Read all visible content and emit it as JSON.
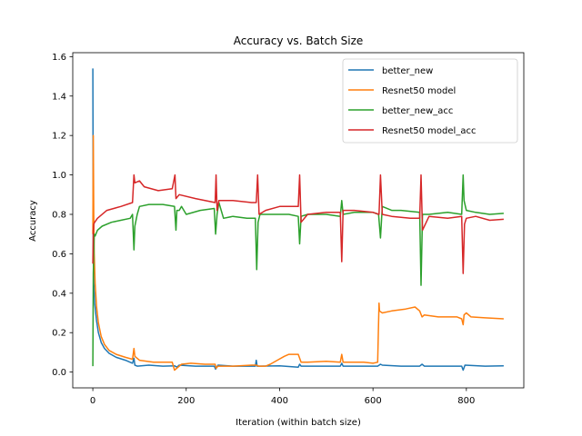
{
  "chart_data": {
    "type": "line",
    "title": "Accuracy vs. Batch Size",
    "xlabel": "Iteration (within batch size)",
    "ylabel": "Accuracy",
    "xlim": [
      -43,
      923
    ],
    "ylim": [
      -0.08,
      1.62
    ],
    "x_ticks": [
      0,
      200,
      400,
      600,
      800
    ],
    "y_ticks": [
      0.0,
      0.2,
      0.4,
      0.6,
      0.8,
      1.0,
      1.2,
      1.4,
      1.6
    ],
    "y_tick_labels": [
      "0.0",
      "0.2",
      "0.4",
      "0.6",
      "0.8",
      "1.0",
      "1.2",
      "1.4",
      "1.6"
    ],
    "grid": false,
    "legend_position": "top-right",
    "series": [
      {
        "name": "better_new",
        "color": "#1f77b4",
        "points": [
          [
            0,
            1.54
          ],
          [
            1,
            0.6
          ],
          [
            2,
            0.45
          ],
          [
            4,
            0.35
          ],
          [
            6,
            0.3
          ],
          [
            8,
            0.26
          ],
          [
            12,
            0.2
          ],
          [
            18,
            0.15
          ],
          [
            25,
            0.12
          ],
          [
            35,
            0.095
          ],
          [
            50,
            0.075
          ],
          [
            70,
            0.06
          ],
          [
            85,
            0.045
          ],
          [
            88,
            0.07
          ],
          [
            90,
            0.035
          ],
          [
            95,
            0.03
          ],
          [
            120,
            0.035
          ],
          [
            150,
            0.03
          ],
          [
            175,
            0.032
          ],
          [
            180,
            0.025
          ],
          [
            185,
            0.035
          ],
          [
            220,
            0.03
          ],
          [
            260,
            0.03
          ],
          [
            263,
            0.015
          ],
          [
            268,
            0.035
          ],
          [
            300,
            0.03
          ],
          [
            348,
            0.03
          ],
          [
            350,
            0.06
          ],
          [
            352,
            0.03
          ],
          [
            400,
            0.032
          ],
          [
            440,
            0.025
          ],
          [
            443,
            0.04
          ],
          [
            446,
            0.03
          ],
          [
            500,
            0.03
          ],
          [
            530,
            0.03
          ],
          [
            533,
            0.045
          ],
          [
            536,
            0.03
          ],
          [
            580,
            0.03
          ],
          [
            610,
            0.03
          ],
          [
            616,
            0.04
          ],
          [
            620,
            0.035
          ],
          [
            660,
            0.03
          ],
          [
            700,
            0.03
          ],
          [
            705,
            0.04
          ],
          [
            710,
            0.03
          ],
          [
            760,
            0.03
          ],
          [
            790,
            0.03
          ],
          [
            793,
            0.01
          ],
          [
            797,
            0.035
          ],
          [
            840,
            0.03
          ],
          [
            880,
            0.032
          ]
        ]
      },
      {
        "name": "Resnet50 model",
        "color": "#ff7f0e",
        "points": [
          [
            0,
            0.7
          ],
          [
            1,
            1.2
          ],
          [
            2,
            0.8
          ],
          [
            3,
            0.6
          ],
          [
            5,
            0.45
          ],
          [
            8,
            0.33
          ],
          [
            12,
            0.25
          ],
          [
            18,
            0.18
          ],
          [
            25,
            0.14
          ],
          [
            35,
            0.11
          ],
          [
            50,
            0.09
          ],
          [
            70,
            0.075
          ],
          [
            85,
            0.065
          ],
          [
            88,
            0.12
          ],
          [
            90,
            0.08
          ],
          [
            100,
            0.06
          ],
          [
            130,
            0.05
          ],
          [
            170,
            0.05
          ],
          [
            175,
            0.01
          ],
          [
            180,
            0.02
          ],
          [
            190,
            0.04
          ],
          [
            210,
            0.045
          ],
          [
            240,
            0.04
          ],
          [
            262,
            0.04
          ],
          [
            264,
            0.02
          ],
          [
            268,
            0.03
          ],
          [
            300,
            0.03
          ],
          [
            340,
            0.035
          ],
          [
            350,
            0.035
          ],
          [
            355,
            0.03
          ],
          [
            370,
            0.03
          ],
          [
            380,
            0.04
          ],
          [
            395,
            0.06
          ],
          [
            410,
            0.08
          ],
          [
            420,
            0.09
          ],
          [
            440,
            0.09
          ],
          [
            443,
            0.07
          ],
          [
            446,
            0.05
          ],
          [
            460,
            0.05
          ],
          [
            500,
            0.055
          ],
          [
            530,
            0.05
          ],
          [
            533,
            0.09
          ],
          [
            536,
            0.05
          ],
          [
            580,
            0.05
          ],
          [
            600,
            0.045
          ],
          [
            610,
            0.05
          ],
          [
            613,
            0.35
          ],
          [
            614,
            0.31
          ],
          [
            620,
            0.3
          ],
          [
            640,
            0.31
          ],
          [
            670,
            0.32
          ],
          [
            690,
            0.33
          ],
          [
            700,
            0.31
          ],
          [
            705,
            0.28
          ],
          [
            710,
            0.29
          ],
          [
            740,
            0.28
          ],
          [
            780,
            0.28
          ],
          [
            790,
            0.27
          ],
          [
            793,
            0.24
          ],
          [
            795,
            0.29
          ],
          [
            800,
            0.3
          ],
          [
            810,
            0.28
          ],
          [
            840,
            0.275
          ],
          [
            880,
            0.27
          ]
        ]
      },
      {
        "name": "better_new_acc",
        "color": "#2ca02c",
        "points": [
          [
            0,
            0.03
          ],
          [
            1,
            0.5
          ],
          [
            2,
            0.6
          ],
          [
            3,
            0.7
          ],
          [
            5,
            0.69
          ],
          [
            10,
            0.72
          ],
          [
            20,
            0.74
          ],
          [
            40,
            0.76
          ],
          [
            60,
            0.77
          ],
          [
            80,
            0.78
          ],
          [
            85,
            0.8
          ],
          [
            88,
            0.62
          ],
          [
            90,
            0.74
          ],
          [
            95,
            0.8
          ],
          [
            100,
            0.84
          ],
          [
            120,
            0.85
          ],
          [
            150,
            0.85
          ],
          [
            175,
            0.84
          ],
          [
            178,
            0.72
          ],
          [
            180,
            0.82
          ],
          [
            185,
            0.82
          ],
          [
            190,
            0.84
          ],
          [
            200,
            0.8
          ],
          [
            230,
            0.82
          ],
          [
            260,
            0.83
          ],
          [
            263,
            0.7
          ],
          [
            266,
            0.8
          ],
          [
            270,
            0.86
          ],
          [
            280,
            0.78
          ],
          [
            300,
            0.79
          ],
          [
            330,
            0.78
          ],
          [
            348,
            0.78
          ],
          [
            351,
            0.52
          ],
          [
            354,
            0.76
          ],
          [
            358,
            0.8
          ],
          [
            380,
            0.8
          ],
          [
            420,
            0.8
          ],
          [
            440,
            0.79
          ],
          [
            443,
            0.65
          ],
          [
            446,
            0.79
          ],
          [
            460,
            0.8
          ],
          [
            500,
            0.8
          ],
          [
            530,
            0.79
          ],
          [
            533,
            0.87
          ],
          [
            536,
            0.8
          ],
          [
            560,
            0.81
          ],
          [
            600,
            0.81
          ],
          [
            612,
            0.8
          ],
          [
            616,
            0.68
          ],
          [
            620,
            0.84
          ],
          [
            640,
            0.82
          ],
          [
            660,
            0.82
          ],
          [
            700,
            0.81
          ],
          [
            703,
            0.44
          ],
          [
            706,
            0.8
          ],
          [
            720,
            0.8
          ],
          [
            760,
            0.81
          ],
          [
            790,
            0.8
          ],
          [
            793,
            1.0
          ],
          [
            795,
            0.87
          ],
          [
            800,
            0.82
          ],
          [
            820,
            0.81
          ],
          [
            850,
            0.8
          ],
          [
            880,
            0.805
          ]
        ]
      },
      {
        "name": "Resnet50 model_acc",
        "color": "#d62728",
        "points": [
          [
            0,
            0.55
          ],
          [
            1,
            0.72
          ],
          [
            2,
            0.75
          ],
          [
            4,
            0.76
          ],
          [
            10,
            0.78
          ],
          [
            30,
            0.82
          ],
          [
            60,
            0.84
          ],
          [
            85,
            0.86
          ],
          [
            88,
            1.0
          ],
          [
            90,
            0.96
          ],
          [
            100,
            0.97
          ],
          [
            110,
            0.94
          ],
          [
            140,
            0.92
          ],
          [
            170,
            0.93
          ],
          [
            176,
            1.0
          ],
          [
            178,
            0.88
          ],
          [
            185,
            0.9
          ],
          [
            220,
            0.88
          ],
          [
            262,
            0.86
          ],
          [
            264,
            1.0
          ],
          [
            266,
            0.82
          ],
          [
            270,
            0.87
          ],
          [
            300,
            0.87
          ],
          [
            340,
            0.86
          ],
          [
            350,
            0.86
          ],
          [
            353,
            1.0
          ],
          [
            356,
            0.8
          ],
          [
            370,
            0.82
          ],
          [
            400,
            0.84
          ],
          [
            440,
            0.84
          ],
          [
            443,
            1.0
          ],
          [
            446,
            0.76
          ],
          [
            460,
            0.8
          ],
          [
            500,
            0.81
          ],
          [
            530,
            0.81
          ],
          [
            533,
            0.56
          ],
          [
            536,
            0.82
          ],
          [
            560,
            0.82
          ],
          [
            600,
            0.81
          ],
          [
            613,
            0.8
          ],
          [
            616,
            1.0
          ],
          [
            620,
            0.8
          ],
          [
            640,
            0.79
          ],
          [
            680,
            0.78
          ],
          [
            700,
            0.78
          ],
          [
            703,
            1.0
          ],
          [
            706,
            0.72
          ],
          [
            720,
            0.79
          ],
          [
            760,
            0.78
          ],
          [
            790,
            0.79
          ],
          [
            793,
            0.5
          ],
          [
            796,
            0.75
          ],
          [
            800,
            0.78
          ],
          [
            820,
            0.79
          ],
          [
            850,
            0.77
          ],
          [
            880,
            0.775
          ]
        ]
      }
    ]
  }
}
